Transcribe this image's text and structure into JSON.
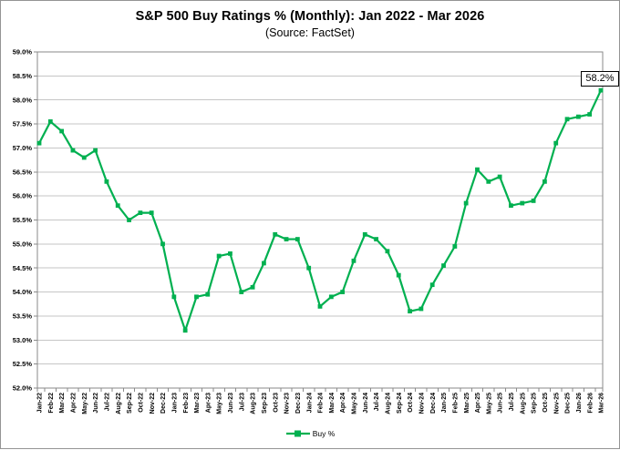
{
  "header": {
    "title": "S&P 500 Buy Ratings % (Monthly): Jan 2022 - Mar 2026",
    "subtitle": "(Source: FactSet)"
  },
  "legend": {
    "label": "Buy %"
  },
  "annotation": {
    "label": "58.2%"
  },
  "colors": {
    "line": "#00B050",
    "grid": "#c6c6c6",
    "axis": "#8a8a8a",
    "text": "#000000",
    "background": "#ffffff"
  },
  "chart_data": {
    "type": "line",
    "title": "S&P 500 Buy Ratings % (Monthly): Jan 2022 - Mar 2026",
    "subtitle": "(Source: FactSet)",
    "categories": [
      "Jan-22",
      "Feb-22",
      "Mar-22",
      "Apr-22",
      "May-22",
      "Jun-22",
      "Jul-22",
      "Aug-22",
      "Sep-22",
      "Oct-22",
      "Nov-22",
      "Dec-22",
      "Jan-23",
      "Feb-23",
      "Mar-23",
      "Apr-23",
      "May-23",
      "Jun-23",
      "Jul-23",
      "Aug-23",
      "Sep-23",
      "Oct-23",
      "Nov-23",
      "Dec-23",
      "Jan-24",
      "Feb-24",
      "Mar-24",
      "Apr-24",
      "May-24",
      "Jun-24",
      "Jul-24",
      "Aug-24",
      "Sep-24",
      "Oct-24",
      "Nov-24",
      "Dec-24",
      "Jan-25",
      "Feb-25",
      "Mar-25",
      "Apr-25",
      "May-25",
      "Jun-25",
      "Jul-25",
      "Aug-25",
      "Sep-25",
      "Oct-25",
      "Nov-25",
      "Dec-25",
      "Jan-26",
      "Feb-26",
      "Mar-26"
    ],
    "series": [
      {
        "name": "Buy %",
        "color": "#00B050",
        "values": [
          57.1,
          57.55,
          57.35,
          56.95,
          56.8,
          56.95,
          56.3,
          55.8,
          55.5,
          55.65,
          55.65,
          55.0,
          53.9,
          53.2,
          53.9,
          53.95,
          54.75,
          54.8,
          54.0,
          54.1,
          54.6,
          55.2,
          55.1,
          55.1,
          54.5,
          53.7,
          53.9,
          54.0,
          54.65,
          55.2,
          55.1,
          54.85,
          54.35,
          53.6,
          53.65,
          54.15,
          54.55,
          54.95,
          55.85,
          56.55,
          56.3,
          56.4,
          55.8,
          55.85,
          55.9,
          56.3,
          57.1,
          57.6,
          57.65,
          57.7,
          58.2
        ]
      }
    ],
    "ylim": [
      52.0,
      59.0
    ],
    "ytick_step": 0.5,
    "ytick_labels": [
      "52.0%",
      "52.5%",
      "53.0%",
      "53.5%",
      "54.0%",
      "54.5%",
      "55.0%",
      "55.5%",
      "56.0%",
      "56.5%",
      "57.0%",
      "57.5%",
      "58.0%",
      "58.5%",
      "59.0%"
    ],
    "grid": "horizontal-only",
    "legend_position": "bottom-center",
    "annotation": {
      "text": "58.2%",
      "attached_to": "Mar-26"
    }
  }
}
